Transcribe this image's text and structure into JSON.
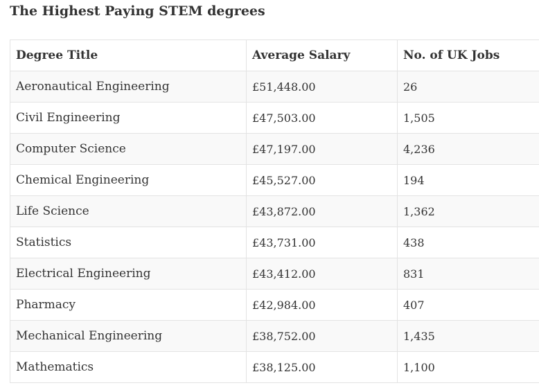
{
  "page": {
    "title": "The Highest Paying STEM degrees"
  },
  "table": {
    "headers": [
      "Degree Title",
      "Average Salary",
      "No. of UK Jobs"
    ],
    "rows": [
      {
        "degree": "Aeronautical Engineering",
        "salary": "£51,448.00",
        "jobs": "26"
      },
      {
        "degree": "Civil Engineering",
        "salary": "£47,503.00",
        "jobs": "1,505"
      },
      {
        "degree": "Computer Science",
        "salary": "£47,197.00",
        "jobs": "4,236"
      },
      {
        "degree": "Chemical Engineering",
        "salary": "£45,527.00",
        "jobs": "194"
      },
      {
        "degree": "Life Science",
        "salary": "£43,872.00",
        "jobs": "1,362"
      },
      {
        "degree": "Statistics",
        "salary": "£43,731.00",
        "jobs": "438"
      },
      {
        "degree": "Electrical Engineering",
        "salary": "£43,412.00",
        "jobs": "831"
      },
      {
        "degree": "Pharmacy",
        "salary": "£42,984.00",
        "jobs": "407"
      },
      {
        "degree": "Mechanical Engineering",
        "salary": "£38,752.00",
        "jobs": "1,435"
      },
      {
        "degree": "Mathematics",
        "salary": "£38,125.00",
        "jobs": "1,100"
      }
    ]
  }
}
